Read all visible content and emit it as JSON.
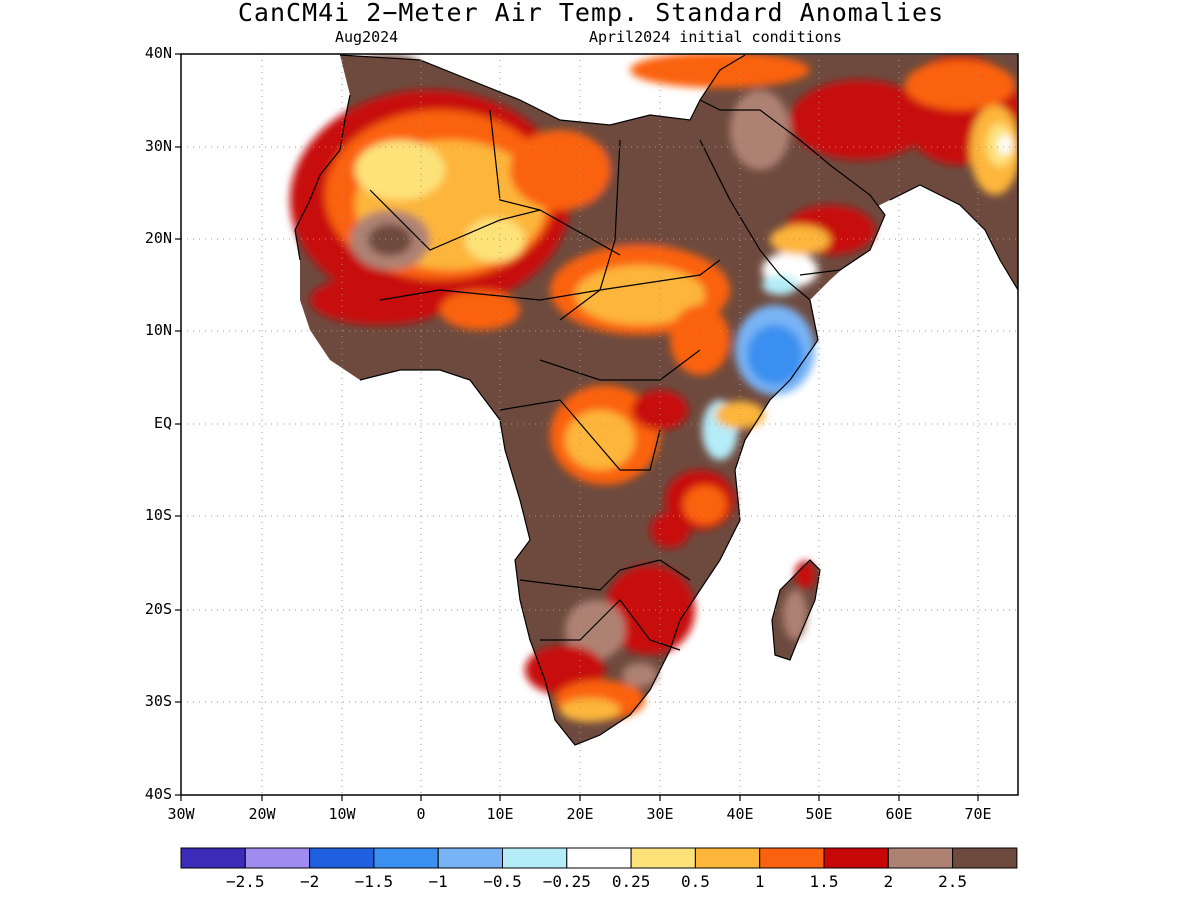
{
  "title": "CanCM4i 2−Meter Air Temp. Standard Anomalies",
  "subtitle_left": "Aug2024",
  "subtitle_right": "April2024 initial conditions",
  "y_ticks": [
    "40N",
    "30N",
    "20N",
    "10N",
    "EQ",
    "10S",
    "20S",
    "30S",
    "40S"
  ],
  "x_ticks": [
    "30W",
    "20W",
    "10W",
    "0",
    "10E",
    "20E",
    "30E",
    "40E",
    "50E",
    "60E",
    "70E"
  ],
  "colorbar": {
    "colors": [
      "#3a2bb8",
      "#a08cf0",
      "#1f5fe0",
      "#3b8ff0",
      "#78b4f5",
      "#b4ecf8",
      "#ffffff",
      "#fde27a",
      "#fdb53a",
      "#fb6210",
      "#c80707",
      "#ae8273",
      "#6e4a3e"
    ],
    "labels": [
      "−2.5",
      "−2",
      "−1.5",
      "−1",
      "−0.5",
      "−0.25",
      "0.25",
      "0.5",
      "1",
      "1.5",
      "2",
      "2.5"
    ]
  },
  "map": {
    "region": {
      "lon_min": -30,
      "lon_max": 75,
      "lat_min": -40,
      "lat_max": 40
    },
    "variable": "2-meter air temperature standard anomaly",
    "regions": [
      {
        "lon": -5,
        "lat": 22,
        "level": 2
      },
      {
        "lon": 8,
        "lat": 24,
        "level": 0.5
      },
      {
        "lon": 30,
        "lat": 25,
        "level": 2.5
      },
      {
        "lon": 45,
        "lat": 7,
        "level": -1.5
      },
      {
        "lon": 23,
        "lat": 2,
        "level": 1
      },
      {
        "lon": 22,
        "lat": -12,
        "level": 2.5
      },
      {
        "lon": 30,
        "lat": -20,
        "level": 2
      },
      {
        "lon": 20,
        "lat": -30,
        "level": 1.5
      },
      {
        "lon": 47,
        "lat": -20,
        "level": 2.5
      },
      {
        "lon": 55,
        "lat": 32,
        "level": 2
      },
      {
        "lon": 72,
        "lat": 30,
        "level": 0.5
      }
    ]
  }
}
